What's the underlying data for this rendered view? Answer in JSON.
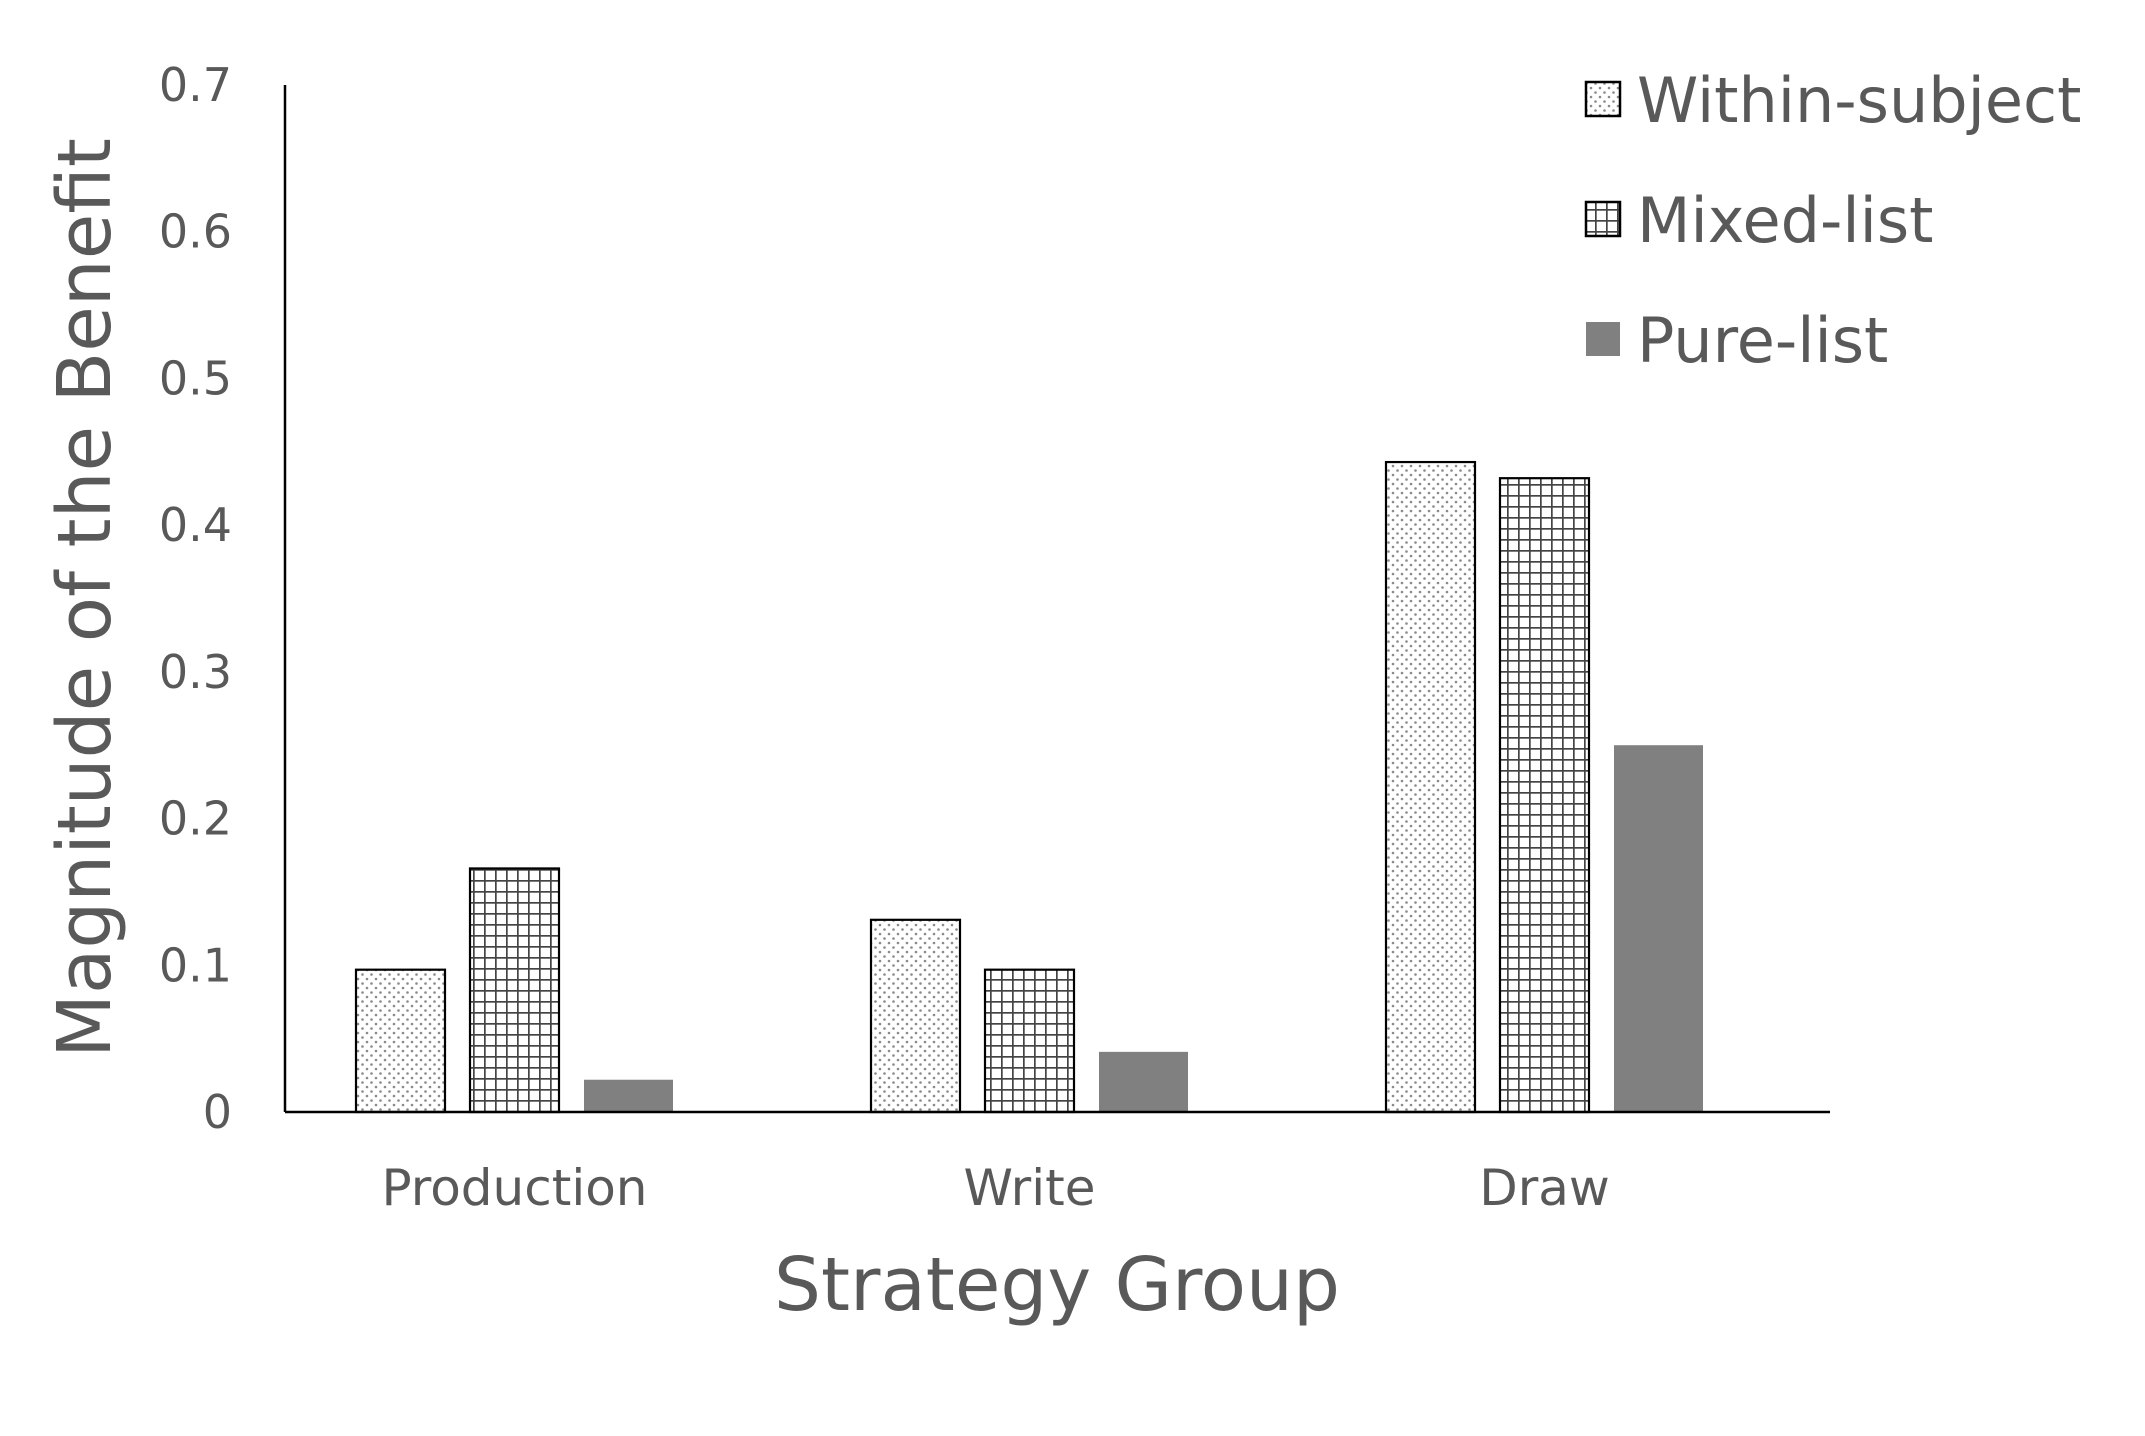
{
  "chart_data": {
    "type": "bar",
    "title": "",
    "xlabel": "Strategy Group",
    "ylabel": "Magnitude of the Benefit",
    "ylim": [
      0,
      0.7
    ],
    "yticks": [
      "0",
      "0.1",
      "0.2",
      "0.3",
      "0.4",
      "0.5",
      "0.6",
      "0.7"
    ],
    "categories": [
      "Production",
      "Write",
      "Draw"
    ],
    "series": [
      {
        "name": "Within-subject",
        "values": [
          0.097,
          0.131,
          0.443
        ],
        "pattern": "dots",
        "color": "#000000"
      },
      {
        "name": "Mixed-list",
        "values": [
          0.166,
          0.097,
          0.432
        ],
        "pattern": "grid",
        "color": "#000000"
      },
      {
        "name": "Pure-list",
        "values": [
          0.022,
          0.041,
          0.25
        ],
        "pattern": "solid",
        "color": "#808080"
      }
    ],
    "grid": false,
    "legend": "top-right",
    "colors": {
      "text": "#595959",
      "axis": "#000000",
      "solid": "#808080"
    }
  }
}
